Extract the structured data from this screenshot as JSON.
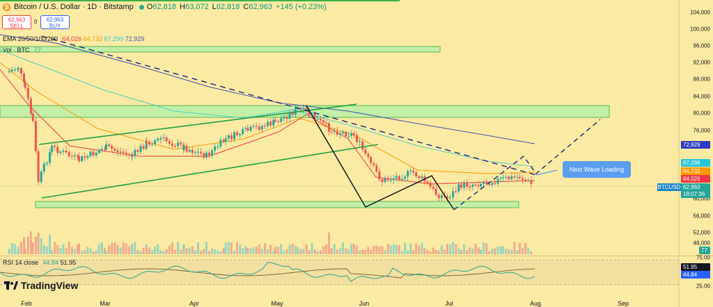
{
  "header": {
    "symbol": "Bitcoin / U.S. Dollar · 1D · Bitstamp",
    "open_k": "O",
    "open_v": "62,818",
    "high_k": "H",
    "high_v": "63,072",
    "low_k": "L",
    "low_v": "62,818",
    "close_k": "C",
    "close_v": "62,963",
    "change": "+145 (+0.23%)"
  },
  "trade": {
    "sell_price": "62,963",
    "sell_label": "SELL",
    "spread": "0",
    "buy_price": "62,963",
    "buy_label": "BUY"
  },
  "ema": {
    "label": "EMA 20/50/100/200",
    "v20": "64,026",
    "v50": "64,732",
    "v100": "67,299",
    "v200": "72,929"
  },
  "vol": {
    "label": "Vol · BTC",
    "value": "77"
  },
  "rsi": {
    "label": "RSI 14 close",
    "v1": "44.84",
    "v2": "51.95"
  },
  "callout": "Next Wave Loading",
  "symbol_tag": "BTCUSD",
  "price_tags": {
    "ema200": "72,929",
    "ema100": "67,299",
    "ema50": "64,732",
    "ema20": "64,026",
    "price": "62,963",
    "countdown": "18:07:36",
    "vol": "77",
    "rsi_hi": "51.95",
    "rsi_lo": "44.84"
  },
  "y_ticks": [
    "104,000",
    "100,000",
    "96,000",
    "92,000",
    "88,000",
    "84,000",
    "80,000",
    "76,000",
    "60,000",
    "56,000",
    "52,000",
    "48,000"
  ],
  "rsi_ticks": [
    "75.00",
    "25.00"
  ],
  "x_ticks": [
    "Feb",
    "Mar",
    "Apr",
    "May",
    "Jun",
    "Jul",
    "Aug",
    "Sep"
  ],
  "logo_text": "TradingView",
  "colors": {
    "bg": "#fbeaa3",
    "up": "#26a69a",
    "down": "#ef5350",
    "zone": "#b9f0a6",
    "ema20": "#f23645",
    "ema50": "#ff9800",
    "ema100": "#4dd0c8",
    "ema200": "#3f51b5"
  },
  "chart_data": {
    "type": "candlestick",
    "title": "Bitcoin / U.S. Dollar · 1D · Bitstamp",
    "ylim": [
      48000,
      106000
    ],
    "series": [
      {
        "name": "EMA 20",
        "last": 64026
      },
      {
        "name": "EMA 50",
        "last": 64732
      },
      {
        "name": "EMA 100",
        "last": 67299
      },
      {
        "name": "EMA 200",
        "last": 72929
      }
    ],
    "close_path": [
      [
        "Jan 24",
        90000
      ],
      [
        "Jan 28",
        91000
      ],
      [
        "Jan 31",
        86000
      ],
      [
        "Feb 3",
        78000
      ],
      [
        "Feb 5",
        64000
      ],
      [
        "Feb 10",
        72000
      ],
      [
        "Feb 20",
        69000
      ],
      [
        "Mar 1",
        72000
      ],
      [
        "Mar 10",
        70000
      ],
      [
        "Mar 15",
        73000
      ],
      [
        "Mar 20",
        74000
      ],
      [
        "Mar 28",
        72000
      ],
      [
        "Apr 5",
        70000
      ],
      [
        "Apr 12",
        74000
      ],
      [
        "Apr 20",
        76000
      ],
      [
        "Apr 30",
        78000
      ],
      [
        "May 8",
        81000
      ],
      [
        "May 12",
        80000
      ],
      [
        "May 20",
        76000
      ],
      [
        "May 28",
        75000
      ],
      [
        "Jun 3",
        68000
      ],
      [
        "Jun 7",
        64000
      ],
      [
        "Jun 12",
        65000
      ],
      [
        "Jun 18",
        66000
      ],
      [
        "Jun 22",
        64000
      ],
      [
        "Jun 26",
        61000
      ],
      [
        "Jun 30",
        60000
      ],
      [
        "Jul 5",
        63000
      ],
      [
        "Jul 12",
        63500
      ],
      [
        "Jul 20",
        64500
      ],
      [
        "Jul 26",
        65000
      ],
      [
        "Jul 31",
        62963
      ]
    ],
    "volume_last": 77,
    "rsi": {
      "value": 44.84,
      "signal": 51.95,
      "levels": [
        75,
        25
      ]
    }
  }
}
